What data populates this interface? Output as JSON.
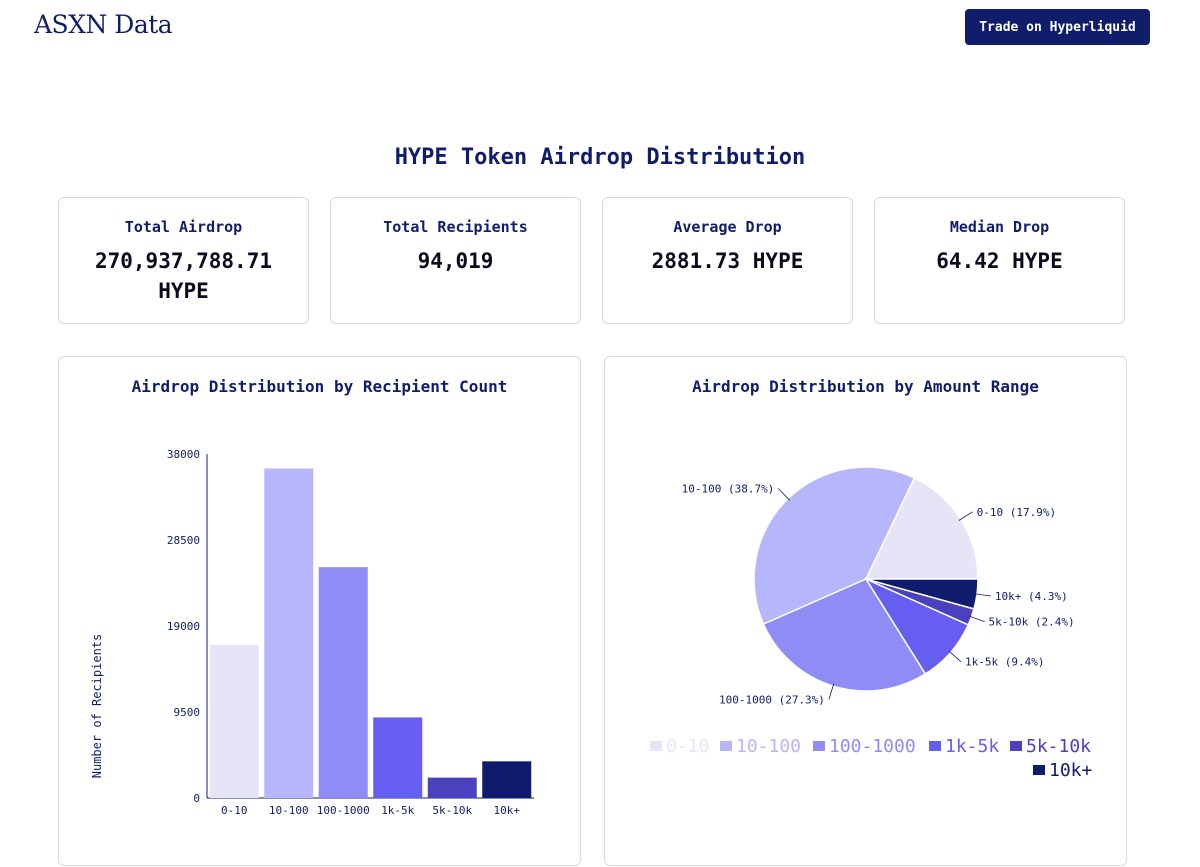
{
  "header": {
    "brand": "ASXN Data",
    "trade_button": "Trade on Hyperliquid"
  },
  "page": {
    "title": "HYPE Token Airdrop Distribution"
  },
  "stats": [
    {
      "label": "Total Airdrop",
      "value": "270,937,788.71 HYPE"
    },
    {
      "label": "Total Recipients",
      "value": "94,019"
    },
    {
      "label": "Average Drop",
      "value": "2881.73 HYPE"
    },
    {
      "label": "Median Drop",
      "value": "64.42 HYPE"
    }
  ],
  "colors": {
    "navy": "#101d6b",
    "range_colors": [
      "#e6e5f8",
      "#b8b6fb",
      "#8f8cf5",
      "#655ef0",
      "#4b41bf",
      "#0f1c6e"
    ]
  },
  "chart_data": [
    {
      "type": "bar",
      "title": "Airdrop Distribution by Recipient Count",
      "categories": [
        "0-10",
        "10-100",
        "100-1000",
        "1k-5k",
        "5k-10k",
        "10k+"
      ],
      "values": [
        16900,
        36400,
        25500,
        8900,
        2250,
        4050
      ],
      "ylabel": "Number of Recipients",
      "xlabel": "",
      "yticks": [
        0,
        9500,
        19000,
        28500,
        38000
      ],
      "ylim": [
        0,
        38000
      ],
      "grid": false
    },
    {
      "type": "pie",
      "title": "Airdrop Distribution by Amount Range",
      "categories": [
        "0-10",
        "10-100",
        "100-1000",
        "1k-5k",
        "5k-10k",
        "10k+"
      ],
      "values": [
        17.9,
        38.7,
        27.3,
        9.4,
        2.4,
        4.3
      ],
      "slice_labels": [
        "0-10 (17.9%)",
        "10-100 (38.7%)",
        "100-1000 (27.3%)",
        "1k-5k (9.4%)",
        "5k-10k (2.4%)",
        "10k+ (4.3%)"
      ],
      "legend": "bottom"
    }
  ]
}
